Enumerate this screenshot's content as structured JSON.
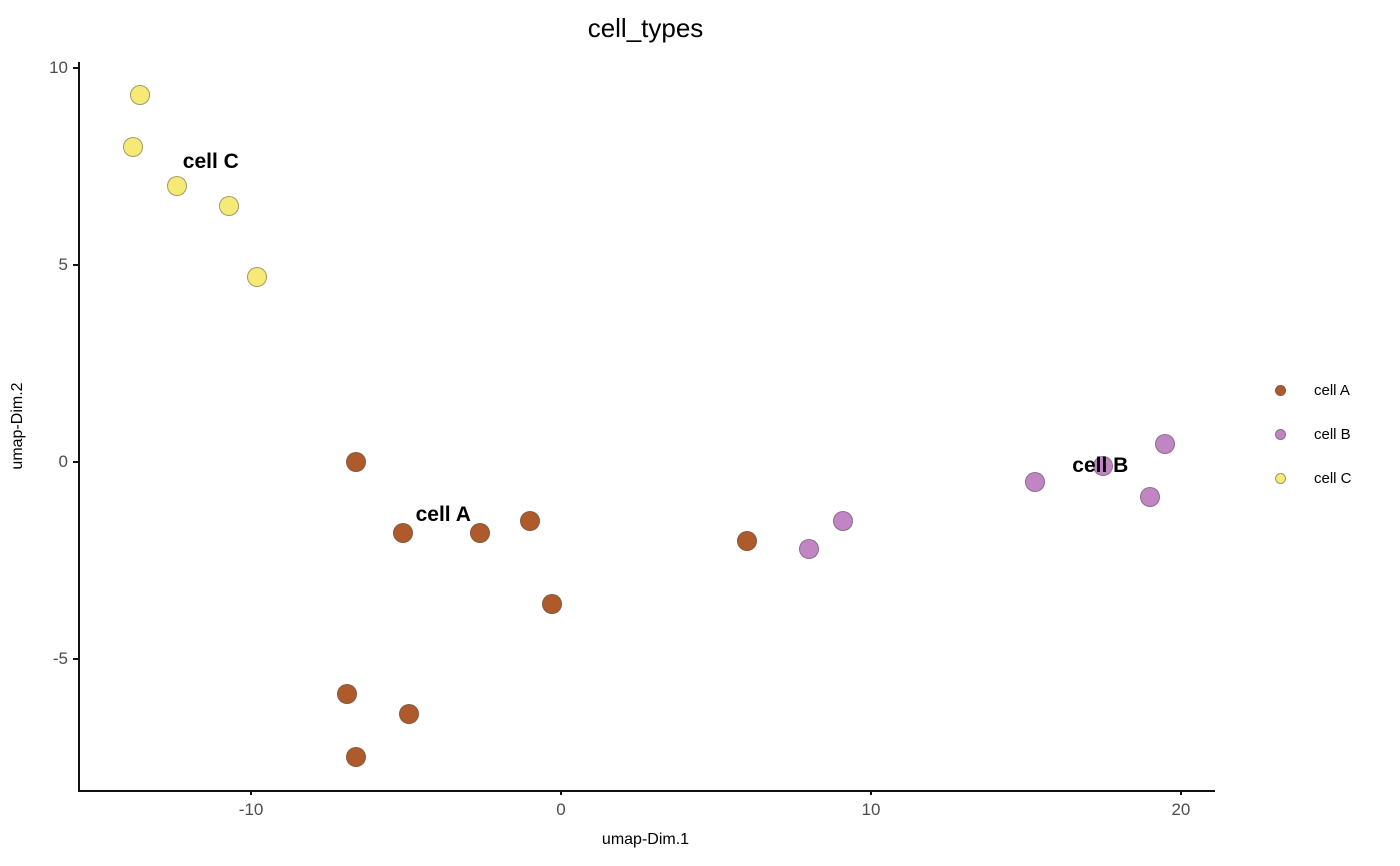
{
  "title": "cell_types",
  "chart_data": {
    "type": "scatter",
    "title": "cell_types",
    "xlabel": "umap-Dim.1",
    "ylabel": "umap-Dim.2",
    "xlim": [
      -15.52,
      21.1
    ],
    "ylim": [
      -8.33,
      10.15
    ],
    "x_ticks": [
      "-10",
      "0",
      "10",
      "20"
    ],
    "x_tick_values": [
      -10,
      0,
      10,
      20
    ],
    "y_ticks": [
      "10",
      "5",
      "0",
      "-5"
    ],
    "y_tick_values": [
      10,
      5,
      0,
      -5
    ],
    "grid": false,
    "legend_position": "right",
    "series": [
      {
        "name": "cell A",
        "color": "#AE5A2B",
        "points": [
          [
            -6.6,
            0.0
          ],
          [
            -5.1,
            -1.8
          ],
          [
            -2.6,
            -1.8
          ],
          [
            -1.0,
            -1.5
          ],
          [
            -0.3,
            -3.6
          ],
          [
            -6.9,
            -5.9
          ],
          [
            -4.9,
            -6.4
          ],
          [
            -6.6,
            -7.5
          ],
          [
            6.0,
            -2.0
          ]
        ]
      },
      {
        "name": "cell B",
        "color": "#C285C4",
        "points": [
          [
            8.0,
            -2.2
          ],
          [
            9.1,
            -1.5
          ],
          [
            15.3,
            -0.5
          ],
          [
            17.5,
            -0.1
          ],
          [
            19.5,
            0.45
          ],
          [
            19.0,
            -0.9
          ]
        ]
      },
      {
        "name": "cell C",
        "color": "#F6E976",
        "points": [
          [
            -13.6,
            9.3
          ],
          [
            -13.8,
            8.0
          ],
          [
            -12.4,
            7.0
          ],
          [
            -10.7,
            6.5
          ],
          [
            -9.8,
            4.7
          ]
        ]
      }
    ],
    "cluster_labels": [
      {
        "text": "cell A",
        "x": -3.8,
        "y": -1.35
      },
      {
        "text": "cell B",
        "x": 17.4,
        "y": -0.1
      },
      {
        "text": "cell C",
        "x": -11.3,
        "y": 7.6
      }
    ]
  },
  "legend": {
    "items": [
      {
        "label": "cell A",
        "color": "#AE5A2B"
      },
      {
        "label": "cell B",
        "color": "#C285C4"
      },
      {
        "label": "cell C",
        "color": "#F6E976"
      }
    ]
  }
}
